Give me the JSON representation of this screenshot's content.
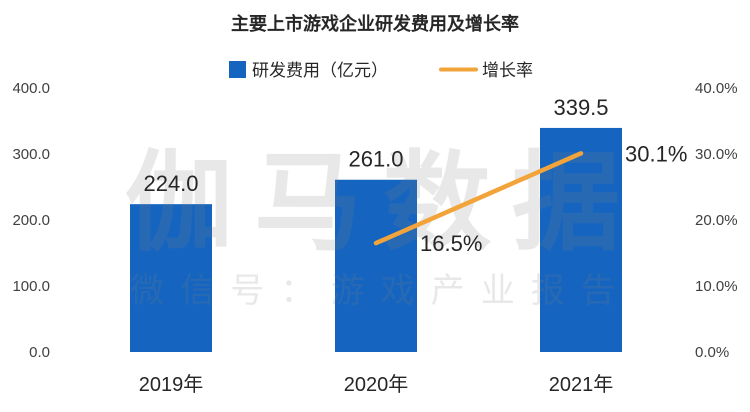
{
  "chart_data": {
    "type": "bar",
    "title": "主要上市游戏企业研发费用及增长率",
    "categories": [
      "2019年",
      "2020年",
      "2021年"
    ],
    "series": [
      {
        "name": "研发费用（亿元）",
        "type": "bar",
        "axis": "left",
        "values": [
          224.0,
          261.0,
          339.5
        ],
        "labels": [
          "224.0",
          "261.0",
          "339.5"
        ],
        "color": "#1565c0"
      },
      {
        "name": "增长率",
        "type": "line",
        "axis": "right",
        "values": [
          null,
          16.5,
          30.1
        ],
        "labels": [
          null,
          "16.5%",
          "30.1%"
        ],
        "color": "#f2a33a"
      }
    ],
    "y_left": {
      "lim": [
        0,
        400
      ],
      "ticks": [
        0,
        100,
        200,
        300,
        400
      ],
      "tick_labels": [
        "0.0",
        "100.0",
        "200.0",
        "300.0",
        "400.0"
      ]
    },
    "y_right": {
      "lim": [
        0,
        40
      ],
      "ticks": [
        0,
        10,
        20,
        30,
        40
      ],
      "tick_labels": [
        "0.0%",
        "10.0%",
        "20.0%",
        "30.0%",
        "40.0%"
      ]
    },
    "legend": "top-center",
    "grid": false
  },
  "watermark": {
    "main": "伽马数据",
    "sub": "微信号：游戏产业报告"
  }
}
